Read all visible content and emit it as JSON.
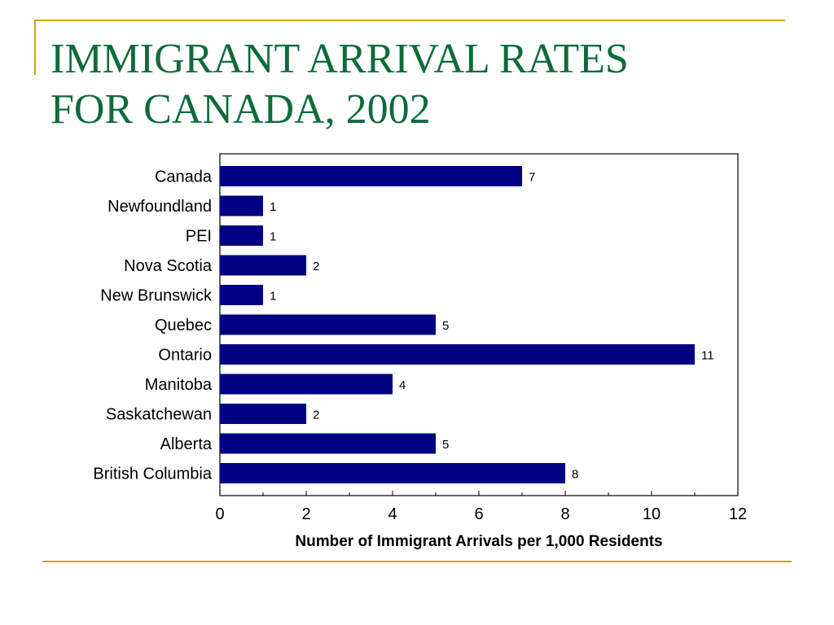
{
  "slide": {
    "title_line1": "IMMIGRANT ARRIVAL RATES",
    "title_line2": "FOR CANADA, 2002"
  },
  "colors": {
    "title": "#0e6b3a",
    "accent": "#d4a017",
    "bar": "#000080"
  },
  "chart_data": {
    "type": "bar",
    "orientation": "horizontal",
    "categories": [
      "Canada",
      "Newfoundland",
      "PEI",
      "Nova Scotia",
      "New Brunswick",
      "Quebec",
      "Ontario",
      "Manitoba",
      "Saskatchewan",
      "Alberta",
      "British Columbia"
    ],
    "values": [
      7,
      1,
      1,
      2,
      1,
      5,
      11,
      4,
      2,
      5,
      8
    ],
    "data_labels": [
      "7",
      "1",
      "1",
      "2",
      "1",
      "5",
      "11",
      "4",
      "2",
      "5",
      "8"
    ],
    "title": "",
    "xlabel": "Number of Immigrant Arrivals per 1,000 Residents",
    "ylabel": "",
    "xlim": [
      0,
      12
    ],
    "xticks": [
      0,
      2,
      4,
      6,
      8,
      10,
      12
    ],
    "grid": false,
    "legend": "none"
  }
}
